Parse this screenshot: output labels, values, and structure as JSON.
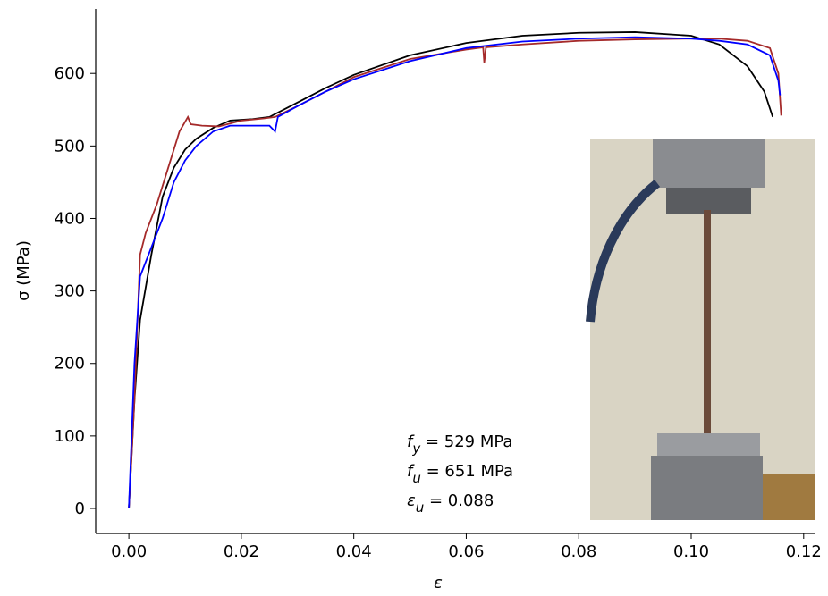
{
  "chart_data": {
    "type": "line",
    "xlabel": "ε",
    "ylabel": "σ (MPa)",
    "xlim": [
      -0.0059,
      0.1221
    ],
    "ylim": [
      -34.5,
      689
    ],
    "xticks": [
      {
        "value": 0,
        "label": "0.00"
      },
      {
        "value": 0.02,
        "label": "0.02"
      },
      {
        "value": 0.04,
        "label": "0.04"
      },
      {
        "value": 0.06,
        "label": "0.06"
      },
      {
        "value": 0.08,
        "label": "0.08"
      },
      {
        "value": 0.1,
        "label": "0.10"
      },
      {
        "value": 0.12,
        "label": "0.12"
      }
    ],
    "yticks": [
      0,
      100,
      200,
      300,
      400,
      500,
      600
    ],
    "grid": false,
    "series": [
      {
        "color": "#000000",
        "x": [
          0,
          0.001,
          0.002,
          0.004,
          0.006,
          0.008,
          0.01,
          0.012,
          0.015,
          0.018,
          0.022,
          0.025,
          0.03,
          0.035,
          0.04,
          0.05,
          0.06,
          0.07,
          0.08,
          0.09,
          0.1,
          0.105,
          0.11,
          0.113,
          0.1145
        ],
        "values": [
          0,
          150,
          260,
          350,
          430,
          470,
          495,
          510,
          525,
          535,
          537,
          540,
          560,
          580,
          598,
          625,
          642,
          652,
          656,
          657,
          652,
          640,
          610,
          575,
          540
        ]
      },
      {
        "color": "#a52a2a",
        "x": [
          0,
          0.001,
          0.002,
          0.003,
          0.005,
          0.007,
          0.009,
          0.0105,
          0.011,
          0.013,
          0.016,
          0.02,
          0.024,
          0.026,
          0.03,
          0.035,
          0.04,
          0.05,
          0.06,
          0.063,
          0.0632,
          0.0635,
          0.07,
          0.08,
          0.09,
          0.1,
          0.105,
          0.11,
          0.114,
          0.1155,
          0.116
        ],
        "values": [
          0,
          150,
          350,
          380,
          420,
          470,
          520,
          540,
          530,
          528,
          527,
          535,
          538,
          540,
          555,
          575,
          595,
          620,
          633,
          636,
          615,
          636,
          640,
          645,
          647,
          648,
          648,
          645,
          635,
          600,
          542
        ]
      },
      {
        "color": "#0000ff",
        "x": [
          0,
          0.001,
          0.002,
          0.004,
          0.006,
          0.008,
          0.01,
          0.012,
          0.015,
          0.018,
          0.022,
          0.025,
          0.026,
          0.0265,
          0.03,
          0.035,
          0.04,
          0.05,
          0.06,
          0.07,
          0.08,
          0.09,
          0.1,
          0.105,
          0.11,
          0.114,
          0.1155,
          0.1158
        ],
        "values": [
          0,
          200,
          320,
          360,
          400,
          450,
          480,
          500,
          520,
          528,
          528,
          528,
          520,
          540,
          555,
          575,
          592,
          617,
          635,
          644,
          648,
          650,
          648,
          645,
          640,
          625,
          590,
          570
        ]
      }
    ],
    "annotations": [
      {
        "symbol": "f",
        "sub": "y",
        "text": " = 529 MPa"
      },
      {
        "symbol": "f",
        "sub": "u",
        "text": " = 651 MPa"
      },
      {
        "symbol": "ε",
        "sub": "u",
        "text": " = 0.088"
      }
    ]
  }
}
